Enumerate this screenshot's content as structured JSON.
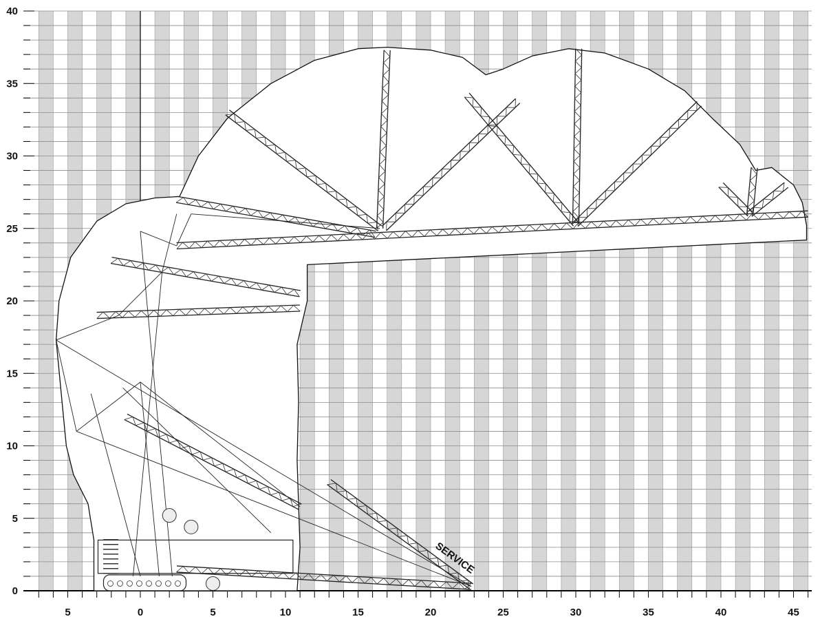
{
  "chart_data": {
    "type": "diagram",
    "title": "",
    "x_ticks": [
      "5",
      "0",
      "5",
      "10",
      "15",
      "20",
      "25",
      "30",
      "35",
      "40",
      "45"
    ],
    "x_tick_values": [
      -5,
      0,
      5,
      10,
      15,
      20,
      25,
      30,
      35,
      40,
      45
    ],
    "y_ticks": [
      "0",
      "5",
      "10",
      "15",
      "20",
      "25",
      "30",
      "35",
      "40"
    ],
    "y_tick_values": [
      0,
      5,
      10,
      15,
      20,
      25,
      30,
      35,
      40
    ],
    "x_range": [
      -7,
      47
    ],
    "y_range": [
      0,
      40
    ],
    "grid": true,
    "annotation": "SERVICE",
    "envelope": [
      [
        -3.2,
        0
      ],
      [
        -3.2,
        3.5
      ],
      [
        -3.6,
        6
      ],
      [
        -4.6,
        8
      ],
      [
        -5.1,
        10
      ],
      [
        -5.2,
        11
      ],
      [
        -5.8,
        17.3
      ],
      [
        -5.6,
        20
      ],
      [
        -4.8,
        23
      ],
      [
        -3,
        25.5
      ],
      [
        -1,
        26.7
      ],
      [
        1,
        27.1
      ],
      [
        2.7,
        27.2
      ],
      [
        4,
        30
      ],
      [
        6,
        32.6
      ],
      [
        9,
        35
      ],
      [
        12,
        36.6
      ],
      [
        15,
        37.4
      ],
      [
        17,
        37.5
      ],
      [
        20,
        37.3
      ],
      [
        22.2,
        36.8
      ],
      [
        23.8,
        35.6
      ],
      [
        25,
        36
      ],
      [
        27,
        36.9
      ],
      [
        29.5,
        37.4
      ],
      [
        32,
        37.1
      ],
      [
        35,
        36
      ],
      [
        37.5,
        34.5
      ],
      [
        39.5,
        32.5
      ],
      [
        41.3,
        30.8
      ],
      [
        42.4,
        29
      ],
      [
        43.5,
        29.2
      ],
      [
        45,
        28
      ],
      [
        45.6,
        26.8
      ],
      [
        45.9,
        25.2
      ],
      [
        45.9,
        24.2
      ],
      [
        11.5,
        22.5
      ],
      [
        11.5,
        20
      ],
      [
        10.8,
        17
      ],
      [
        10.9,
        13
      ],
      [
        10.8,
        9
      ],
      [
        10.9,
        6
      ],
      [
        11,
        3
      ],
      [
        10.8,
        0
      ]
    ],
    "booms": [
      {
        "from": [
          2.5,
          1.5
        ],
        "to": [
          22.8,
          0.3
        ]
      },
      {
        "from": [
          -1,
          12
        ],
        "to": [
          11,
          5.8
        ]
      },
      {
        "from": [
          -2,
          22.8
        ],
        "to": [
          11,
          20.5
        ]
      },
      {
        "from": [
          -3,
          19
        ],
        "to": [
          11,
          19.5
        ]
      },
      {
        "from": [
          2.5,
          27
        ],
        "to": [
          16.2,
          24.6
        ]
      },
      {
        "from": [
          2.5,
          23.8
        ],
        "to": [
          46,
          26
        ]
      },
      {
        "from": [
          6,
          33
        ],
        "to": [
          16.5,
          25
        ]
      },
      {
        "from": [
          17,
          37.3
        ],
        "to": [
          16.5,
          25
        ]
      },
      {
        "from": [
          26,
          33.8
        ],
        "to": [
          16.8,
          25
        ]
      },
      {
        "from": [
          22.5,
          34.2
        ],
        "to": [
          30,
          25.3
        ]
      },
      {
        "from": [
          30.2,
          37.4
        ],
        "to": [
          30,
          25.3
        ]
      },
      {
        "from": [
          38.5,
          33.6
        ],
        "to": [
          30,
          25.3
        ]
      },
      {
        "from": [
          40,
          28
        ],
        "to": [
          42,
          26
        ]
      },
      {
        "from": [
          42.3,
          29.2
        ],
        "to": [
          42,
          26
        ]
      },
      {
        "from": [
          44.5,
          28
        ],
        "to": [
          42,
          26
        ]
      },
      {
        "from": [
          13,
          7.5
        ],
        "to": [
          22.8,
          0.3
        ]
      }
    ],
    "ropes": [
      {
        "from": [
          -5.8,
          17.3
        ],
        "to": [
          -4.4,
          11
        ]
      },
      {
        "from": [
          -5.8,
          17.3
        ],
        "to": [
          -1.5,
          19
        ]
      },
      {
        "from": [
          -5.8,
          17.3
        ],
        "to": [
          22.8,
          0.3
        ]
      },
      {
        "from": [
          -4.4,
          11
        ],
        "to": [
          22.8,
          0.3
        ]
      },
      {
        "from": [
          0,
          14.4
        ],
        "to": [
          -4.4,
          11
        ]
      },
      {
        "from": [
          0,
          14.4
        ],
        "to": [
          11,
          5.8
        ]
      },
      {
        "from": [
          -1.5,
          19
        ],
        "to": [
          1.5,
          22
        ]
      },
      {
        "from": [
          1.5,
          22
        ],
        "to": [
          -0.5,
          1
        ]
      },
      {
        "from": [
          1.5,
          22
        ],
        "to": [
          2.5,
          26
        ]
      },
      {
        "from": [
          0,
          24.8
        ],
        "to": [
          2.2,
          1
        ]
      },
      {
        "from": [
          0,
          24.8
        ],
        "to": [
          2.5,
          23.8
        ]
      },
      {
        "from": [
          2.5,
          23.8
        ],
        "to": [
          3.5,
          26
        ]
      },
      {
        "from": [
          3.5,
          26
        ],
        "to": [
          16.5,
          25
        ]
      },
      {
        "from": [
          -3.4,
          13.6
        ],
        "to": [
          0,
          1
        ]
      },
      {
        "from": [
          0,
          14.4
        ],
        "to": [
          1.3,
          1
        ]
      },
      {
        "from": [
          -1.2,
          14
        ],
        "to": [
          9,
          4
        ]
      }
    ],
    "crawler": {
      "x": [
        -3.2,
        10.8
      ],
      "y": [
        0,
        3.5
      ]
    }
  }
}
